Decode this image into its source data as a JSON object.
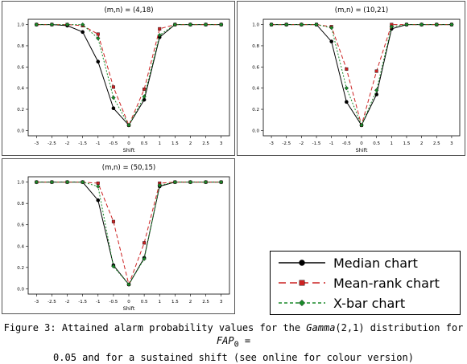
{
  "chart_data": [
    {
      "type": "line",
      "title": "(m,n) = (4,18)",
      "xlabel": "Shift",
      "x": [
        -3,
        -2.5,
        -2,
        -1.5,
        -1,
        -0.5,
        0,
        0.5,
        1,
        1.5,
        2,
        2.5,
        3
      ],
      "x_ticks": [
        "-3",
        "-2.5",
        "-2",
        "-1.5",
        "-1",
        "-0.5",
        "0",
        "0.5",
        "1",
        "1.5",
        "2",
        "2.5",
        "3"
      ],
      "y_ticks": [
        "0.0",
        "0.2",
        "0.4",
        "0.6",
        "0.8",
        "1.0"
      ],
      "ylim": [
        0,
        1
      ],
      "series": [
        {
          "name": "Median chart",
          "color": "#000000",
          "marker": "circle",
          "dash": "solid",
          "values": [
            1.0,
            1.0,
            0.99,
            0.93,
            0.65,
            0.21,
            0.05,
            0.29,
            0.88,
            1.0,
            1.0,
            1.0,
            1.0
          ]
        },
        {
          "name": "Mean-rank chart",
          "color": "#cc2222",
          "marker": "square",
          "dash": "dashed",
          "values": [
            1.0,
            1.0,
            1.0,
            0.99,
            0.91,
            0.41,
            0.05,
            0.39,
            0.96,
            1.0,
            1.0,
            1.0,
            1.0
          ]
        },
        {
          "name": "X-bar chart",
          "color": "#1a8a2a",
          "marker": "diamond",
          "dash": "dotted",
          "values": [
            1.0,
            1.0,
            1.0,
            1.0,
            0.87,
            0.31,
            0.05,
            0.32,
            0.9,
            1.0,
            1.0,
            1.0,
            1.0
          ]
        }
      ]
    },
    {
      "type": "line",
      "title": "(m,n) = (10,21)",
      "xlabel": "Shift",
      "x": [
        -3,
        -2.5,
        -2,
        -1.5,
        -1,
        -0.5,
        0,
        0.5,
        1,
        1.5,
        2,
        2.5,
        3
      ],
      "x_ticks": [
        "-3",
        "-2.5",
        "-2",
        "-1.5",
        "-1",
        "-0.5",
        "0",
        "0.5",
        "1",
        "1.5",
        "2",
        "2.5",
        "3"
      ],
      "y_ticks": [
        "0.0",
        "0.2",
        "0.4",
        "0.6",
        "0.8",
        "1.0"
      ],
      "ylim": [
        0,
        1
      ],
      "series": [
        {
          "name": "Median chart",
          "color": "#000000",
          "marker": "circle",
          "dash": "solid",
          "values": [
            1.0,
            1.0,
            1.0,
            1.0,
            0.84,
            0.27,
            0.05,
            0.34,
            0.96,
            1.0,
            1.0,
            1.0,
            1.0
          ]
        },
        {
          "name": "Mean-rank chart",
          "color": "#cc2222",
          "marker": "square",
          "dash": "dashed",
          "values": [
            1.0,
            1.0,
            1.0,
            1.0,
            0.98,
            0.58,
            0.05,
            0.56,
            1.0,
            1.0,
            1.0,
            1.0,
            1.0
          ]
        },
        {
          "name": "X-bar chart",
          "color": "#1a8a2a",
          "marker": "diamond",
          "dash": "dotted",
          "values": [
            1.0,
            1.0,
            1.0,
            1.0,
            0.97,
            0.4,
            0.05,
            0.38,
            0.98,
            1.0,
            1.0,
            1.0,
            1.0
          ]
        }
      ]
    },
    {
      "type": "line",
      "title": "(m,n) = (50,15)",
      "xlabel": "Shift",
      "x": [
        -3,
        -2.5,
        -2,
        -1.5,
        -1,
        -0.5,
        0,
        0.5,
        1,
        1.5,
        2,
        2.5,
        3
      ],
      "x_ticks": [
        "-3",
        "-2.5",
        "-2",
        "-1.5",
        "-1",
        "-0.5",
        "0",
        "0.5",
        "1",
        "1.5",
        "2",
        "2.5",
        "3"
      ],
      "y_ticks": [
        "0.0",
        "0.2",
        "0.4",
        "0.6",
        "0.8",
        "1.0"
      ],
      "ylim": [
        0,
        1
      ],
      "series": [
        {
          "name": "Median chart",
          "color": "#000000",
          "marker": "circle",
          "dash": "solid",
          "values": [
            1.0,
            1.0,
            1.0,
            1.0,
            0.83,
            0.22,
            0.04,
            0.29,
            0.96,
            1.0,
            1.0,
            1.0,
            1.0
          ]
        },
        {
          "name": "Mean-rank chart",
          "color": "#cc2222",
          "marker": "square",
          "dash": "dashed",
          "values": [
            1.0,
            1.0,
            1.0,
            1.0,
            0.99,
            0.63,
            0.04,
            0.43,
            0.99,
            1.0,
            1.0,
            1.0,
            1.0
          ]
        },
        {
          "name": "X-bar chart",
          "color": "#1a8a2a",
          "marker": "diamond",
          "dash": "dotted",
          "values": [
            1.0,
            1.0,
            1.0,
            1.0,
            0.96,
            0.21,
            0.04,
            0.28,
            0.97,
            1.0,
            1.0,
            1.0,
            1.0
          ]
        }
      ]
    }
  ],
  "legend": {
    "items": [
      {
        "label": "Median chart",
        "color": "#000000",
        "marker": "circle",
        "dash": "solid"
      },
      {
        "label": "Mean-rank chart",
        "color": "#cc2222",
        "marker": "square",
        "dash": "dashed"
      },
      {
        "label": "X-bar chart",
        "color": "#1a8a2a",
        "marker": "diamond",
        "dash": "dotted"
      }
    ]
  },
  "caption": {
    "line1_prefix": "Figure 3: Attained alarm probability values for the ",
    "line1_dist": "Gamma",
    "line1_params": "(2,1) distribution for ",
    "line1_fap": "FAP",
    "line1_sub": "0",
    "line1_suffix": " =",
    "line2": "0.05 and for a sustained shift (see online for colour version)"
  }
}
